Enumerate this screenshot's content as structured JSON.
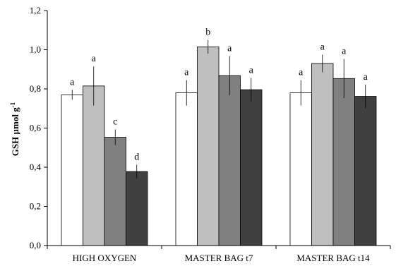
{
  "chart_data": {
    "type": "bar",
    "ylabel": "GSH µmol g",
    "ylabel_superscript": "-1",
    "ylim": [
      0,
      1.2
    ],
    "yticks": [
      "0,0",
      "0,2",
      "0,4",
      "0,6",
      "0,8",
      "1,0",
      "1,2"
    ],
    "grid": false,
    "legend": "none",
    "categories": [
      "HIGH OXYGEN",
      "MASTER BAG t7",
      "MASTER BAG t14"
    ],
    "series": [
      {
        "color": "#ffffff",
        "values": [
          0.77,
          0.78,
          0.78
        ],
        "errors": [
          0.025,
          0.065,
          0.065
        ],
        "labels": [
          "a",
          "a",
          "a"
        ]
      },
      {
        "color": "#bfbfbf",
        "values": [
          0.815,
          1.015,
          0.93
        ],
        "errors": [
          0.1,
          0.035,
          0.045
        ],
        "labels": [
          "a",
          "b",
          "a"
        ]
      },
      {
        "color": "#808080",
        "values": [
          0.553,
          0.868,
          0.853
        ],
        "errors": [
          0.04,
          0.1,
          0.1
        ],
        "labels": [
          "c",
          "a",
          "a"
        ]
      },
      {
        "color": "#404040",
        "values": [
          0.378,
          0.796,
          0.762
        ],
        "errors": [
          0.035,
          0.06,
          0.06
        ],
        "labels": [
          "d",
          "a",
          "a"
        ]
      }
    ]
  }
}
